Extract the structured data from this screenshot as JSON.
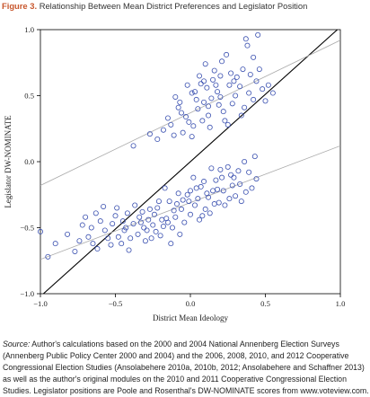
{
  "figure": {
    "number": "Figure 3.",
    "title": "Relationship Between Mean District Preferences and Legislator Position"
  },
  "source": {
    "label": "Source:",
    "text": "Author's calculations based on the 2000 and 2004 National Annenberg Election Surveys (Annenberg Public Policy Center 2000 and 2004) and the 2006, 2008, 2010, and 2012 Cooperative Congressional Election Studies (Ansolabehere 2010a, 2010b, 2012; Ansolabehere and Schaffner 2013) as well as the author's original modules on the 2010 and 2011 Cooperative Congressional Election Studies. Legislator positions are Poole and Rosenthal's DW-NOMINATE scores from www.voteview.com."
  },
  "colors": {
    "points": "#3a50b0",
    "fit_line": "#aaaaaa",
    "diagonal": "#000000",
    "title_accent": "#c8562c"
  },
  "chart_data": {
    "type": "scatter",
    "xlabel": "District Mean Ideology",
    "ylabel": "Legislator DW-NOMINATE",
    "xlim": [
      -1.0,
      1.0
    ],
    "ylim": [
      -1.0,
      1.0
    ],
    "x_ticks": [
      -1.0,
      -0.5,
      0.0,
      0.5,
      1.0
    ],
    "x_tick_labels": [
      "−1.0",
      "−0.5",
      "0.0",
      "0.5",
      "1.0"
    ],
    "y_ticks": [
      -1.0,
      -0.5,
      0.0,
      0.5,
      1.0
    ],
    "y_tick_labels": [
      "−1.0",
      "−0.5",
      "0.0",
      "0.5",
      "1.0"
    ],
    "grid": false,
    "legend": "none",
    "reference_lines": [
      {
        "kind": "diagonal",
        "x": [
          -0.98,
          0.98
        ],
        "y": [
          -1.0,
          1.0
        ]
      },
      {
        "kind": "fit-upper",
        "x": [
          -1.0,
          1.0
        ],
        "y": [
          -0.18,
          0.92
        ]
      },
      {
        "kind": "fit-lower",
        "x": [
          -1.0,
          1.0
        ],
        "y": [
          -0.74,
          0.12
        ]
      }
    ],
    "series": [
      {
        "marker": "open-circle",
        "points": [
          [
            0.38,
            0.88
          ],
          [
            0.42,
            0.79
          ],
          [
            0.48,
            0.55
          ],
          [
            0.31,
            0.64
          ],
          [
            0.26,
            0.58
          ],
          [
            0.2,
            0.49
          ],
          [
            0.15,
            0.62
          ],
          [
            0.09,
            0.45
          ],
          [
            0.05,
            0.4
          ],
          [
            0.01,
            0.52
          ],
          [
            -0.03,
            0.34
          ],
          [
            -0.08,
            0.41
          ],
          [
            -0.13,
            0.28
          ],
          [
            -0.18,
            0.24
          ],
          [
            -0.22,
            0.17
          ],
          [
            -0.27,
            0.21
          ],
          [
            -0.38,
            0.12
          ],
          [
            0.24,
            0.81
          ],
          [
            0.35,
            0.7
          ],
          [
            0.28,
            0.44
          ],
          [
            0.12,
            0.35
          ],
          [
            0.07,
            0.59
          ],
          [
            0.02,
            0.27
          ],
          [
            -0.05,
            0.22
          ],
          [
            -0.1,
            0.49
          ],
          [
            0.18,
            0.53
          ],
          [
            0.22,
            0.38
          ],
          [
            0.3,
            0.5
          ],
          [
            0.44,
            0.61
          ],
          [
            0.5,
            0.46
          ],
          [
            0.16,
            0.69
          ],
          [
            0.11,
            0.56
          ],
          [
            0.04,
            0.47
          ],
          [
            -0.01,
            0.3
          ],
          [
            -0.06,
            0.37
          ],
          [
            -0.15,
            0.33
          ],
          [
            0.33,
            0.57
          ],
          [
            0.27,
            0.67
          ],
          [
            0.19,
            0.43
          ],
          [
            0.09,
            0.61
          ],
          [
            0.13,
            0.26
          ],
          [
            0.01,
            0.19
          ],
          [
            -0.11,
            0.2
          ],
          [
            0.23,
            0.31
          ],
          [
            0.36,
            0.41
          ],
          [
            0.46,
            0.7
          ],
          [
            0.39,
            0.52
          ],
          [
            0.21,
            0.76
          ],
          [
            0.06,
            0.65
          ],
          [
            -0.02,
            0.58
          ],
          [
            0.1,
            0.74
          ],
          [
            0.25,
            0.28
          ],
          [
            0.14,
            0.48
          ],
          [
            -0.07,
            0.45
          ],
          [
            0.08,
            0.31
          ],
          [
            0.29,
            0.61
          ],
          [
            0.17,
            0.58
          ],
          [
            0.03,
            0.53
          ],
          [
            0.42,
            0.47
          ],
          [
            0.52,
            0.58
          ],
          [
            0.55,
            0.52
          ],
          [
            0.34,
            0.35
          ],
          [
            0.4,
            0.66
          ],
          [
            0.2,
            0.65
          ],
          [
            0.12,
            0.42
          ],
          [
            0.37,
            0.93
          ],
          [
            0.45,
            0.96
          ],
          [
            -0.82,
            -0.55
          ],
          [
            -0.74,
            -0.6
          ],
          [
            -0.66,
            -0.5
          ],
          [
            -0.6,
            -0.45
          ],
          [
            -0.55,
            -0.58
          ],
          [
            -0.5,
            -0.41
          ],
          [
            -0.44,
            -0.52
          ],
          [
            -0.38,
            -0.47
          ],
          [
            -0.32,
            -0.38
          ],
          [
            -0.28,
            -0.44
          ],
          [
            -0.22,
            -0.35
          ],
          [
            -0.18,
            -0.49
          ],
          [
            -0.14,
            -0.3
          ],
          [
            -0.1,
            -0.42
          ],
          [
            -0.06,
            -0.36
          ],
          [
            -0.02,
            -0.25
          ],
          [
            0.03,
            -0.33
          ],
          [
            0.07,
            -0.19
          ],
          [
            0.12,
            -0.27
          ],
          [
            0.17,
            -0.14
          ],
          [
            0.22,
            -0.22
          ],
          [
            0.27,
            -0.1
          ],
          [
            0.33,
            -0.17
          ],
          [
            0.39,
            -0.08
          ],
          [
            0.44,
            -0.13
          ],
          [
            -0.7,
            -0.42
          ],
          [
            -0.62,
            -0.66
          ],
          [
            -0.57,
            -0.52
          ],
          [
            -0.48,
            -0.57
          ],
          [
            -0.42,
            -0.39
          ],
          [
            -0.35,
            -0.55
          ],
          [
            -0.3,
            -0.6
          ],
          [
            -0.25,
            -0.48
          ],
          [
            -0.2,
            -0.56
          ],
          [
            -0.12,
            -0.5
          ],
          [
            -0.08,
            -0.24
          ],
          [
            -0.04,
            -0.46
          ],
          [
            0.0,
            -0.4
          ],
          [
            0.05,
            -0.28
          ],
          [
            0.1,
            -0.36
          ],
          [
            0.14,
            -0.05
          ],
          [
            0.19,
            -0.31
          ],
          [
            0.25,
            -0.04
          ],
          [
            0.3,
            -0.26
          ],
          [
            0.36,
            0.0
          ],
          [
            0.41,
            -0.2
          ],
          [
            -0.77,
            -0.68
          ],
          [
            -0.68,
            -0.57
          ],
          [
            -0.52,
            -0.47
          ],
          [
            -0.46,
            -0.62
          ],
          [
            -0.4,
            -0.58
          ],
          [
            -0.34,
            -0.42
          ],
          [
            -0.29,
            -0.52
          ],
          [
            -0.24,
            -0.4
          ],
          [
            -0.16,
            -0.43
          ],
          [
            -0.09,
            -0.32
          ],
          [
            -0.01,
            -0.3
          ],
          [
            0.04,
            -0.2
          ],
          [
            0.09,
            -0.15
          ],
          [
            0.13,
            -0.39
          ],
          [
            0.18,
            -0.21
          ],
          [
            0.23,
            -0.33
          ],
          [
            0.28,
            -0.18
          ],
          [
            0.34,
            -0.3
          ],
          [
            -0.58,
            -0.34
          ],
          [
            -0.53,
            -0.63
          ],
          [
            -0.45,
            -0.45
          ],
          [
            -0.37,
            -0.33
          ],
          [
            -0.26,
            -0.58
          ],
          [
            -0.21,
            -0.3
          ],
          [
            -0.17,
            -0.2
          ],
          [
            -0.13,
            -0.62
          ],
          [
            0.02,
            -0.12
          ],
          [
            0.06,
            -0.44
          ],
          [
            0.11,
            -0.24
          ],
          [
            0.16,
            -0.32
          ],
          [
            0.21,
            -0.12
          ],
          [
            0.26,
            -0.28
          ],
          [
            -0.9,
            -0.62
          ],
          [
            -0.95,
            -0.72
          ],
          [
            -0.63,
            -0.39
          ],
          [
            -0.41,
            -0.67
          ],
          [
            -0.31,
            -0.5
          ],
          [
            -0.27,
            -0.36
          ],
          [
            -0.19,
            -0.44
          ],
          [
            -0.11,
            -0.37
          ],
          [
            -0.05,
            -0.29
          ],
          [
            0.08,
            -0.41
          ],
          [
            0.15,
            -0.22
          ],
          [
            0.32,
            -0.07
          ],
          [
            0.37,
            -0.23
          ],
          [
            0.43,
            0.04
          ],
          [
            -0.72,
            -0.48
          ],
          [
            -0.65,
            -0.62
          ],
          [
            -0.49,
            -0.35
          ],
          [
            -0.43,
            -0.5
          ],
          [
            -0.33,
            -0.46
          ],
          [
            -0.23,
            -0.53
          ],
          [
            -0.15,
            -0.46
          ],
          [
            -0.07,
            -0.55
          ],
          [
            0.0,
            -0.22
          ],
          [
            0.2,
            -0.06
          ],
          [
            0.29,
            -0.12
          ],
          [
            -1.0,
            -0.53
          ]
        ]
      }
    ]
  }
}
